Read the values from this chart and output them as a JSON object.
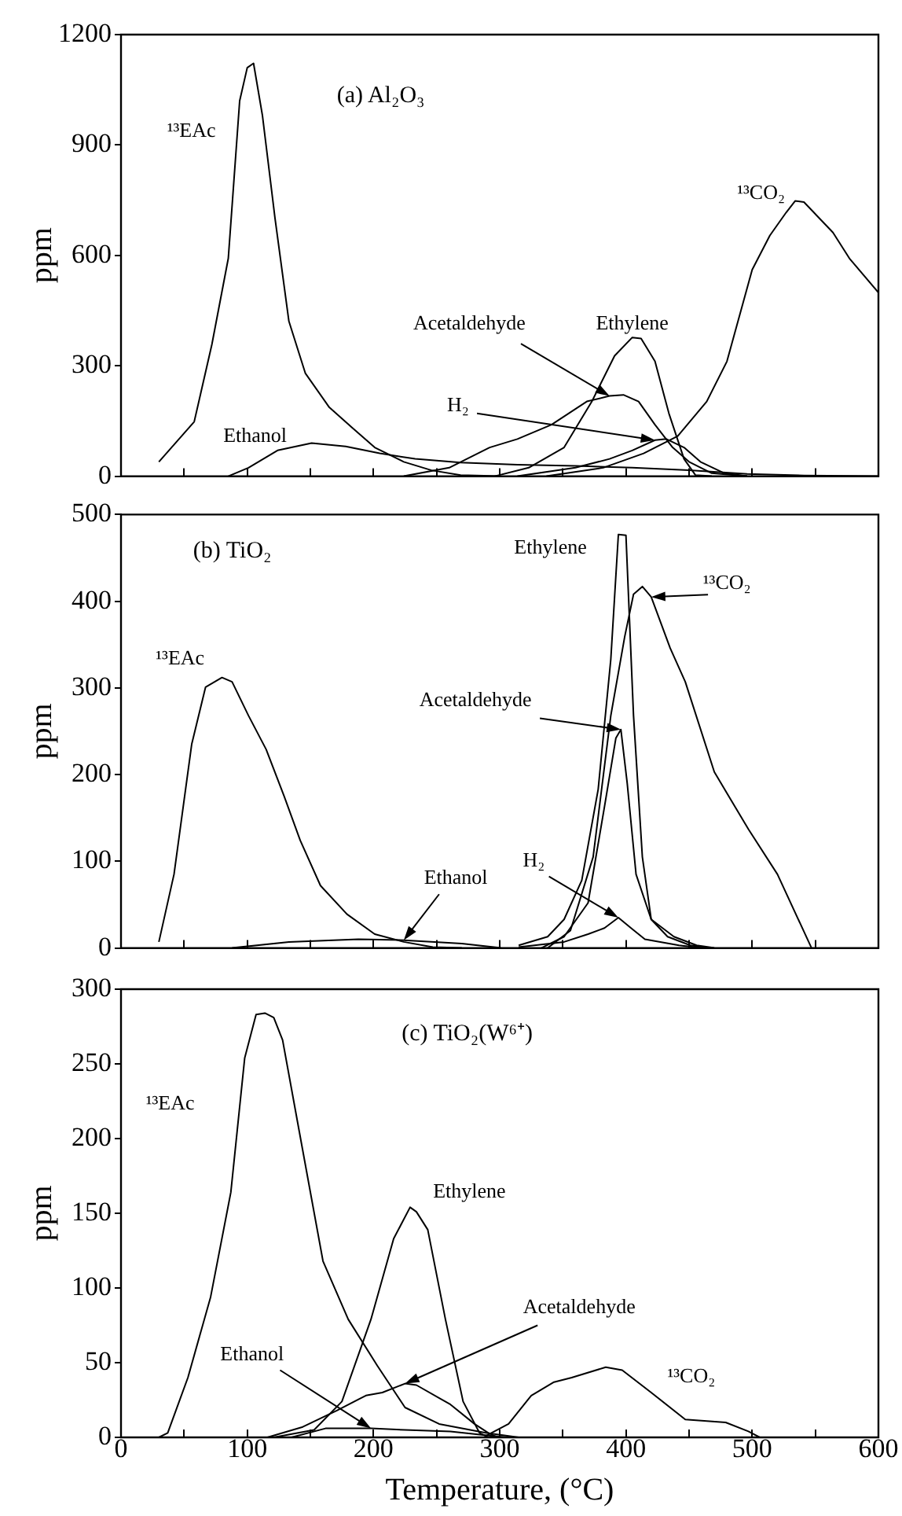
{
  "chart_data": [
    {
      "type": "line",
      "title": "(a) Al₂O₃",
      "ylabel": "ppm",
      "xlim": [
        0,
        600
      ],
      "xticks": [
        0,
        {
          "value": 50,
          "label": null
        },
        100,
        {
          "value": 150,
          "label": null
        },
        200,
        {
          "value": 250,
          "label": null
        },
        300,
        {
          "value": 350,
          "label": null
        },
        400,
        {
          "value": 450,
          "label": null
        },
        500,
        {
          "value": 550,
          "label": null
        },
        600
      ],
      "ylim": [
        0,
        1200
      ],
      "yticks": [
        0,
        300,
        600,
        900,
        1200
      ],
      "tick_labels": "y",
      "series": [
        {
          "name": "¹³EAc",
          "color": "#000000",
          "x": [
            30,
            58,
            72,
            85,
            94,
            100,
            105,
            112,
            122,
            133,
            146,
            165,
            183,
            201,
            224,
            246,
            269,
            300
          ],
          "values": [
            39,
            148,
            358,
            592,
            1020,
            1110,
            1122,
            981,
            701,
            421,
            280,
            187,
            132,
            78,
            39,
            16,
            3,
            0
          ]
        },
        {
          "name": "Ethanol",
          "color": "#000000",
          "x": [
            85,
            101,
            124,
            151,
            178,
            205,
            233,
            269,
            314,
            360,
            405,
            450,
            496,
            541,
            600
          ],
          "values": [
            0,
            23,
            70,
            90,
            81,
            62,
            47,
            37,
            31,
            28,
            23,
            16,
            6,
            2,
            0
          ]
        },
        {
          "name": "Acetaldehyde",
          "color": "#000000",
          "x": [
            224,
            260,
            292,
            314,
            341,
            369,
            387,
            398,
            410,
            423,
            437,
            450,
            468,
            496
          ],
          "values": [
            0,
            23,
            78,
            101,
            140,
            203,
            218,
            221,
            203,
            140,
            78,
            39,
            8,
            0
          ]
        },
        {
          "name": "Ethylene",
          "color": "#000000",
          "x": [
            296,
            323,
            351,
            373,
            391,
            405,
            412,
            423,
            434,
            446,
            455,
            468
          ],
          "values": [
            0,
            23,
            78,
            203,
            327,
            377,
            374,
            312,
            171,
            47,
            3,
            0
          ]
        },
        {
          "name": "H₂",
          "color": "#000000",
          "x": [
            314,
            360,
            387,
            405,
            423,
            432,
            446,
            459,
            478,
            496
          ],
          "values": [
            0,
            23,
            47,
            70,
            98,
            101,
            78,
            39,
            8,
            0
          ]
        },
        {
          "name": "¹³CO₂",
          "color": "#000000",
          "x": [
            337,
            382,
            414,
            441,
            464,
            480,
            500,
            514,
            527,
            534,
            541,
            564,
            577,
            600
          ],
          "values": [
            0,
            23,
            62,
            109,
            203,
            312,
            561,
            654,
            717,
            748,
            745,
            662,
            592,
            499
          ]
        }
      ]
    },
    {
      "type": "line",
      "title": "(b) TiO₂",
      "ylabel": "ppm",
      "xlim": [
        0,
        600
      ],
      "xticks": [
        0,
        {
          "value": 50,
          "label": null
        },
        100,
        {
          "value": 150,
          "label": null
        },
        200,
        {
          "value": 250,
          "label": null
        },
        300,
        {
          "value": 350,
          "label": null
        },
        400,
        {
          "value": 450,
          "label": null
        },
        500,
        {
          "value": 550,
          "label": null
        },
        600
      ],
      "ylim": [
        0,
        500
      ],
      "yticks": [
        0,
        100,
        200,
        300,
        400,
        500
      ],
      "tick_labels": "y",
      "series": [
        {
          "name": "¹³EAc",
          "color": "#000000",
          "x": [
            30,
            42,
            56,
            67,
            80,
            88,
            101,
            115,
            129,
            142,
            158,
            179,
            201,
            224,
            247,
            270
          ],
          "values": [
            7,
            85,
            235,
            301,
            312,
            307,
            268,
            229,
            176,
            124,
            72,
            39,
            16,
            7,
            1,
            0
          ]
        },
        {
          "name": "Ethanol",
          "color": "#000000",
          "x": [
            88,
            133,
            188,
            224,
            270,
            301
          ],
          "values": [
            0,
            7,
            10,
            9,
            5,
            0
          ]
        },
        {
          "name": "Acetaldehyde",
          "color": "#000000",
          "x": [
            333,
            351,
            370,
            383,
            392,
            396,
            401,
            408,
            420,
            438,
            456,
            470
          ],
          "values": [
            0,
            13,
            52,
            163,
            242,
            252,
            190,
            85,
            33,
            13,
            3,
            0
          ]
        },
        {
          "name": "Ethylene",
          "color": "#000000",
          "x": [
            315,
            338,
            351,
            365,
            378,
            388,
            394,
            400,
            406,
            413,
            420,
            433,
            451,
            465
          ],
          "values": [
            3,
            13,
            33,
            78,
            183,
            333,
            477,
            476,
            268,
            105,
            33,
            13,
            3,
            0
          ]
        },
        {
          "name": "H₂",
          "color": "#000000",
          "x": [
            315,
            351,
            370,
            383,
            394,
            404,
            415,
            442,
            460
          ],
          "values": [
            1,
            7,
            16,
            23,
            35,
            23,
            10,
            3,
            0
          ]
        },
        {
          "name": "¹³CO₂",
          "color": "#000000",
          "x": [
            338,
            356,
            374,
            388,
            399,
            406,
            413,
            420,
            435,
            447,
            470,
            497,
            520,
            547
          ],
          "values": [
            0,
            20,
            105,
            268,
            359,
            408,
            417,
            405,
            346,
            307,
            203,
            137,
            85,
            0
          ]
        }
      ]
    },
    {
      "type": "line",
      "title": "(c) TiO₂(W⁶⁺)",
      "xlabel": "Temperature, (°C)",
      "ylabel": "ppm",
      "xlim": [
        0,
        600
      ],
      "xticks": [
        0,
        {
          "value": 50,
          "label": null
        },
        100,
        {
          "value": 150,
          "label": null
        },
        200,
        {
          "value": 250,
          "label": null
        },
        300,
        {
          "value": 350,
          "label": null
        },
        400,
        {
          "value": 450,
          "label": null
        },
        500,
        {
          "value": 550,
          "label": null
        },
        600
      ],
      "ylim": [
        0,
        300
      ],
      "yticks": [
        0,
        50,
        100,
        150,
        200,
        250,
        300
      ],
      "series": [
        {
          "name": "¹³EAc",
          "color": "#000000",
          "x": [
            30,
            37,
            53,
            71,
            87,
            98,
            107,
            114,
            121,
            128,
            139,
            160,
            180,
            203,
            225,
            252,
            289,
            315
          ],
          "values": [
            0,
            3,
            40,
            94,
            164,
            254,
            283,
            284,
            281,
            266,
            215,
            118,
            79,
            48,
            20,
            9,
            3,
            0
          ]
        },
        {
          "name": "Ethanol",
          "color": "#000000",
          "x": [
            135,
            162,
            198,
            225,
            261,
            293,
            306
          ],
          "values": [
            0,
            6,
            6,
            5,
            4,
            1,
            0
          ]
        },
        {
          "name": "Acetaldehyde",
          "color": "#000000",
          "x": [
            116,
            144,
            171,
            194,
            207,
            225,
            234,
            261,
            280,
            291,
            298
          ],
          "values": [
            0,
            7,
            18,
            28,
            30,
            36,
            35,
            22,
            9,
            3,
            0
          ]
        },
        {
          "name": "Ethylene",
          "color": "#000000",
          "x": [
            121,
            153,
            175,
            198,
            216,
            229,
            234,
            243,
            257,
            271,
            284,
            291
          ],
          "values": [
            0,
            5,
            24,
            79,
            133,
            154,
            151,
            139,
            79,
            24,
            3,
            0
          ]
        },
        {
          "name": "¹³CO₂",
          "color": "#000000",
          "x": [
            289,
            307,
            325,
            343,
            357,
            384,
            397,
            420,
            447,
            479,
            497,
            506
          ],
          "values": [
            1,
            9,
            28,
            37,
            40,
            47,
            45,
            30,
            12,
            10,
            4,
            0
          ]
        }
      ]
    }
  ]
}
